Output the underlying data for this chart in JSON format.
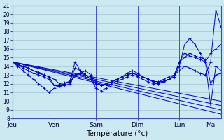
{
  "bg_color": "#cce8f0",
  "line_color": "#0000cc",
  "grid_color": "#99bbcc",
  "xlabel": "Température (°c)",
  "ylim": [
    8,
    21
  ],
  "yticks": [
    8,
    9,
    10,
    11,
    12,
    13,
    14,
    15,
    16,
    17,
    18,
    19,
    20,
    21
  ],
  "xlim": [
    0,
    240
  ],
  "day_positions": [
    0,
    48,
    96,
    144,
    192,
    228
  ],
  "day_labels": [
    "Jeu",
    "Ven",
    "Sam",
    "Dim",
    "Lun",
    "Ma"
  ],
  "series": [
    {
      "points": [
        [
          0,
          14.5
        ],
        [
          6,
          14.2
        ],
        [
          12,
          14.0
        ],
        [
          18,
          13.8
        ],
        [
          24,
          13.5
        ],
        [
          30,
          13.3
        ],
        [
          36,
          13.0
        ],
        [
          42,
          12.8
        ],
        [
          48,
          12.5
        ],
        [
          54,
          12.0
        ],
        [
          60,
          12.1
        ],
        [
          66,
          12.2
        ],
        [
          72,
          13.0
        ],
        [
          78,
          13.2
        ],
        [
          84,
          13.0
        ],
        [
          90,
          12.8
        ],
        [
          96,
          12.0
        ],
        [
          102,
          11.8
        ],
        [
          108,
          12.0
        ],
        [
          114,
          12.2
        ],
        [
          120,
          12.5
        ],
        [
          126,
          12.8
        ],
        [
          132,
          13.0
        ],
        [
          138,
          13.2
        ],
        [
          144,
          13.0
        ],
        [
          150,
          12.8
        ],
        [
          156,
          12.5
        ],
        [
          162,
          12.3
        ],
        [
          168,
          12.2
        ],
        [
          174,
          12.3
        ],
        [
          180,
          12.5
        ],
        [
          186,
          12.8
        ],
        [
          192,
          14.5
        ],
        [
          198,
          15.5
        ],
        [
          204,
          15.2
        ],
        [
          210,
          15.0
        ],
        [
          216,
          14.8
        ],
        [
          222,
          14.5
        ],
        [
          228,
          15.5
        ],
        [
          234,
          16.0
        ],
        [
          240,
          16.5
        ]
      ],
      "marker": true
    },
    {
      "points": [
        [
          0,
          14.5
        ],
        [
          6,
          14.2
        ],
        [
          12,
          14.0
        ],
        [
          18,
          13.8
        ],
        [
          24,
          13.5
        ],
        [
          30,
          13.2
        ],
        [
          36,
          13.0
        ],
        [
          42,
          12.8
        ],
        [
          48,
          11.8
        ],
        [
          54,
          11.7
        ],
        [
          60,
          12.0
        ],
        [
          66,
          12.3
        ],
        [
          72,
          14.5
        ],
        [
          78,
          13.5
        ],
        [
          84,
          13.0
        ],
        [
          90,
          12.5
        ],
        [
          96,
          12.0
        ],
        [
          102,
          11.8
        ],
        [
          108,
          12.0
        ],
        [
          114,
          12.2
        ],
        [
          120,
          12.5
        ],
        [
          126,
          12.8
        ],
        [
          132,
          13.2
        ],
        [
          138,
          13.5
        ],
        [
          144,
          13.2
        ],
        [
          150,
          12.8
        ],
        [
          156,
          12.5
        ],
        [
          162,
          12.3
        ],
        [
          168,
          12.2
        ],
        [
          174,
          12.5
        ],
        [
          180,
          12.8
        ],
        [
          186,
          13.0
        ],
        [
          192,
          13.5
        ],
        [
          198,
          14.0
        ],
        [
          204,
          13.8
        ],
        [
          210,
          13.5
        ],
        [
          216,
          13.2
        ],
        [
          222,
          13.0
        ],
        [
          228,
          14.5
        ],
        [
          234,
          20.5
        ],
        [
          240,
          18.5
        ]
      ],
      "marker": true
    },
    {
      "points": [
        [
          0,
          14.5
        ],
        [
          6,
          14.2
        ],
        [
          12,
          13.8
        ],
        [
          18,
          13.5
        ],
        [
          24,
          13.2
        ],
        [
          30,
          13.0
        ],
        [
          36,
          12.8
        ],
        [
          42,
          12.5
        ],
        [
          48,
          11.8
        ],
        [
          54,
          11.7
        ],
        [
          60,
          11.8
        ],
        [
          66,
          12.0
        ],
        [
          72,
          13.0
        ],
        [
          78,
          13.2
        ],
        [
          84,
          13.5
        ],
        [
          90,
          13.0
        ],
        [
          96,
          12.2
        ],
        [
          102,
          11.8
        ],
        [
          108,
          12.0
        ],
        [
          114,
          12.2
        ],
        [
          120,
          12.5
        ],
        [
          126,
          12.8
        ],
        [
          132,
          13.0
        ],
        [
          138,
          13.2
        ],
        [
          144,
          13.0
        ],
        [
          150,
          12.8
        ],
        [
          156,
          12.5
        ],
        [
          162,
          12.2
        ],
        [
          168,
          12.0
        ],
        [
          174,
          12.2
        ],
        [
          180,
          12.5
        ],
        [
          186,
          12.8
        ],
        [
          192,
          14.0
        ],
        [
          198,
          16.5
        ],
        [
          204,
          17.2
        ],
        [
          210,
          16.5
        ],
        [
          216,
          15.5
        ],
        [
          222,
          14.5
        ],
        [
          228,
          9.5
        ],
        [
          234,
          14.0
        ],
        [
          240,
          13.5
        ]
      ],
      "marker": true
    },
    {
      "points": [
        [
          0,
          14.5
        ],
        [
          6,
          14.0
        ],
        [
          12,
          13.5
        ],
        [
          18,
          13.0
        ],
        [
          24,
          12.5
        ],
        [
          30,
          12.0
        ],
        [
          36,
          11.5
        ],
        [
          42,
          11.0
        ],
        [
          48,
          11.5
        ],
        [
          54,
          11.8
        ],
        [
          60,
          12.0
        ],
        [
          66,
          12.3
        ],
        [
          72,
          13.8
        ],
        [
          78,
          13.5
        ],
        [
          84,
          13.0
        ],
        [
          90,
          12.5
        ],
        [
          96,
          11.5
        ],
        [
          102,
          11.2
        ],
        [
          108,
          11.5
        ],
        [
          114,
          12.0
        ],
        [
          120,
          12.3
        ],
        [
          126,
          12.5
        ],
        [
          132,
          12.8
        ],
        [
          138,
          13.0
        ],
        [
          144,
          12.8
        ],
        [
          150,
          12.5
        ],
        [
          156,
          12.2
        ],
        [
          162,
          12.0
        ],
        [
          168,
          12.0
        ],
        [
          174,
          12.3
        ],
        [
          180,
          12.5
        ],
        [
          186,
          13.0
        ],
        [
          192,
          14.5
        ],
        [
          198,
          15.0
        ],
        [
          204,
          15.5
        ],
        [
          210,
          15.2
        ],
        [
          216,
          15.0
        ],
        [
          222,
          14.8
        ],
        [
          228,
          12.0
        ],
        [
          234,
          13.0
        ],
        [
          240,
          13.2
        ]
      ],
      "marker": true
    },
    {
      "points": [
        [
          0,
          14.5
        ],
        [
          240,
          9.5
        ]
      ],
      "marker": false
    },
    {
      "points": [
        [
          0,
          14.5
        ],
        [
          240,
          10.0
        ]
      ],
      "marker": false
    },
    {
      "points": [
        [
          0,
          14.5
        ],
        [
          240,
          9.0
        ]
      ],
      "marker": false
    },
    {
      "points": [
        [
          0,
          14.5
        ],
        [
          240,
          8.5
        ]
      ],
      "marker": false
    }
  ]
}
